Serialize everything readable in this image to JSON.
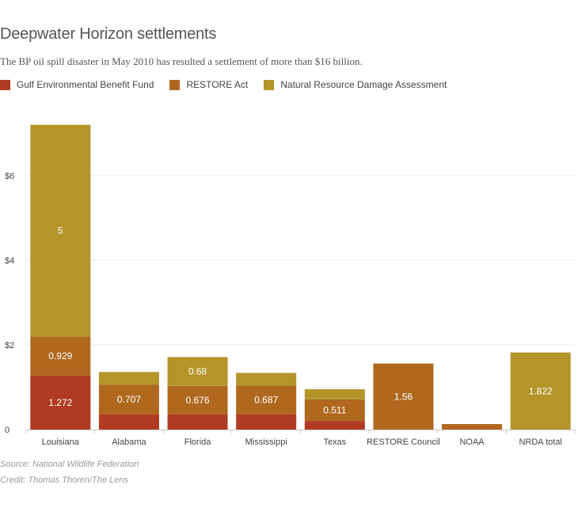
{
  "title": "Deepwater Horizon settlements",
  "subtitle": "The BP oil spill disaster in May 2010 has resulted a settlement of more than $16 billion.",
  "footer": {
    "source": "Source: National Wildlife Federation",
    "credit": "Credit: Thomas Thoren/The Lens"
  },
  "chart_data": {
    "type": "bar",
    "stacked": true,
    "categories": [
      "Louisiana",
      "Alabama",
      "Florida",
      "Mississippi",
      "Texas",
      "RESTORE Council",
      "NOAA",
      "NRDA total"
    ],
    "series": [
      {
        "name": "Gulf Environmental Benefit Fund",
        "color": "#b03a22",
        "values": [
          1.272,
          0.356,
          0.356,
          0.356,
          0.203,
          0,
          0,
          0
        ],
        "labels": [
          "1.272",
          "",
          "",
          "",
          "",
          "",
          "",
          ""
        ]
      },
      {
        "name": "RESTORE Act",
        "color": "#b0681f",
        "values": [
          0.929,
          0.707,
          0.676,
          0.687,
          0.511,
          1.56,
          0.13,
          0
        ],
        "labels": [
          "0.929",
          "0.707",
          "0.676",
          "0.687",
          "0.511",
          "1.56",
          "",
          ""
        ]
      },
      {
        "name": "Natural Resource Damage Assessment",
        "color": "#b5952a",
        "values": [
          5,
          0.296,
          0.68,
          0.296,
          0.239,
          0,
          0,
          1.822
        ],
        "labels": [
          "5",
          "",
          "0.68",
          "",
          "",
          "",
          "",
          "1.822"
        ]
      }
    ],
    "yticks": [
      "0",
      "$2",
      "$4",
      "$6"
    ],
    "ytick_values": [
      0,
      2,
      4,
      6
    ],
    "ylim": [
      0,
      7.2
    ],
    "grid": true
  }
}
